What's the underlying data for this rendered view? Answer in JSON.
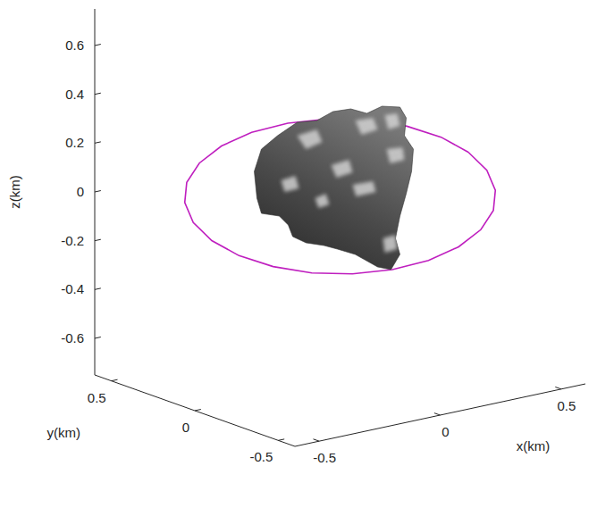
{
  "chart_data": {
    "type": "line3d",
    "x_label": "x(km)",
    "y_label": "y(km)",
    "z_label": "z(km)",
    "xlim": [
      -0.6,
      0.6
    ],
    "ylim": [
      -0.6,
      0.6
    ],
    "zlim": [
      -0.75,
      0.75
    ],
    "xticks": [
      -0.5,
      0,
      0.5
    ],
    "yticks": [
      -0.5,
      0,
      0.5
    ],
    "zticks": [
      -0.6,
      -0.4,
      -0.2,
      0,
      0.2,
      0.4,
      0.6
    ],
    "grid": false,
    "series": [
      {
        "color": "#bf1fbf",
        "x": [
          0.53,
          0.512,
          0.459,
          0.375,
          0.265,
          0.137,
          0,
          -0.137,
          -0.265,
          -0.375,
          -0.459,
          -0.512,
          -0.53,
          -0.512,
          -0.459,
          -0.375,
          -0.265,
          -0.137,
          0,
          0.137,
          0.265,
          0.375,
          0.459,
          0.512,
          0.53
        ],
        "y": [
          0,
          0.137,
          0.265,
          0.375,
          0.459,
          0.512,
          0.53,
          0.512,
          0.459,
          0.375,
          0.265,
          0.137,
          0,
          -0.137,
          -0.265,
          -0.375,
          -0.459,
          -0.512,
          -0.53,
          -0.512,
          -0.459,
          -0.375,
          -0.265,
          -0.137,
          0
        ],
        "z": [
          0.068,
          0.1,
          0.125,
          0.142,
          0.149,
          0.146,
          0.133,
          0.111,
          0.081,
          0.046,
          0.008,
          -0.031,
          -0.068,
          -0.1,
          -0.125,
          -0.142,
          -0.149,
          -0.146,
          -0.133,
          -0.111,
          -0.081,
          -0.046,
          -0.008,
          0.031,
          0.068
        ]
      }
    ]
  }
}
